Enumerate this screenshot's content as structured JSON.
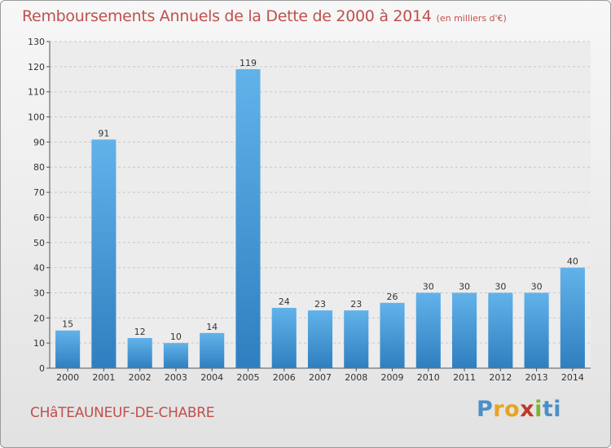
{
  "header": {
    "title": "Remboursements Annuels de la Dette de 2000 à 2014",
    "unit": "(en milliers d'€)"
  },
  "footer": {
    "town": "CHâTEAUNEUF-DE-CHABRE",
    "logo_letters": [
      "P",
      "r",
      "o",
      "x",
      "i",
      "t",
      "i"
    ],
    "logo_colors": [
      "#4a90c8",
      "#e8a321",
      "#e8a321",
      "#c0392b",
      "#7bb536",
      "#4a90c8",
      "#4a90c8"
    ]
  },
  "chart_data": {
    "type": "bar",
    "categories": [
      "2000",
      "2001",
      "2002",
      "2003",
      "2004",
      "2005",
      "2006",
      "2007",
      "2008",
      "2009",
      "2010",
      "2011",
      "2012",
      "2013",
      "2014"
    ],
    "values": [
      15,
      91,
      12,
      10,
      14,
      119,
      24,
      23,
      23,
      26,
      30,
      30,
      30,
      30,
      40
    ],
    "ylim": [
      0,
      130
    ],
    "yticks": [
      0,
      10,
      20,
      30,
      40,
      50,
      60,
      70,
      80,
      90,
      100,
      110,
      120,
      130
    ],
    "grid": true,
    "bar_color_top": "#62b2ea",
    "bar_color_bottom": "#2f7fc0",
    "title": "Remboursements Annuels de la Dette de 2000 à 2014",
    "xlabel": "",
    "ylabel": ""
  }
}
